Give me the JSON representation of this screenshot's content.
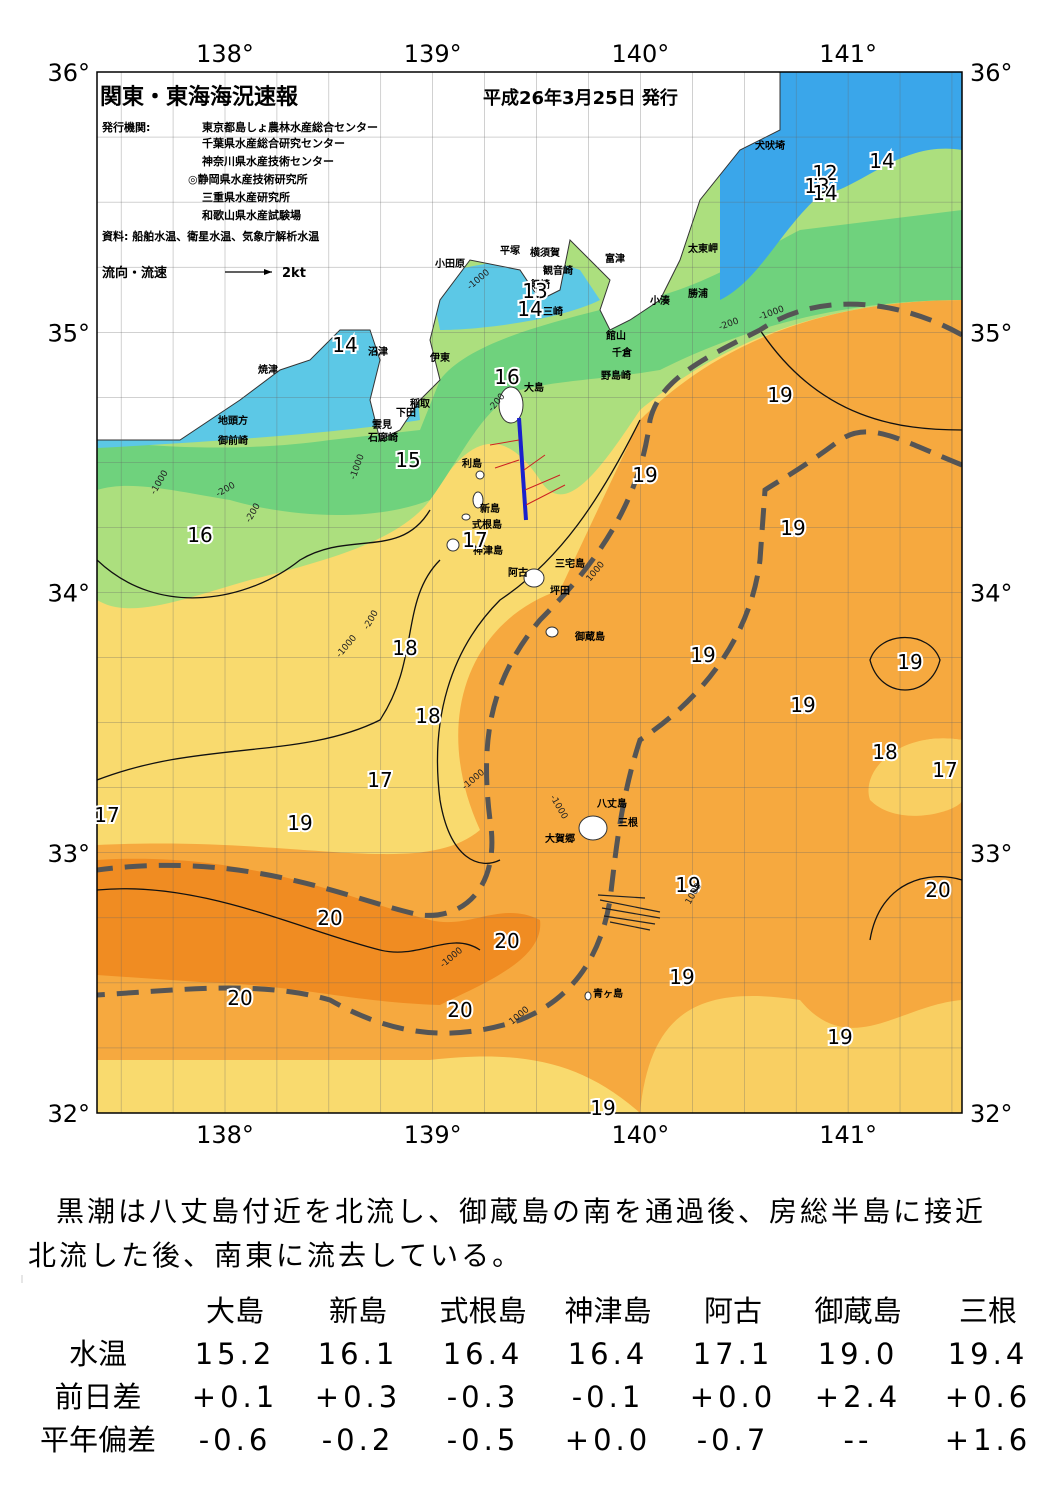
{
  "header": {
    "title": "関東・東海海況速報",
    "date": "平成26年3月25日 発行",
    "issuers_label": "発行機関:",
    "issuers": [
      "東京都島しょ農林水産総合センター",
      "千葉県水産総合研究センター",
      "神奈川県水産技術センター",
      "◎静岡県水産技術研究所",
      "三重県水産研究所",
      "和歌山県水産試験場"
    ],
    "source": "資料: 船舶水温、衛星水温、気象庁解析水温",
    "legend_label": "流向・流速",
    "legend_speed": "2kt"
  },
  "map": {
    "lon_labels": [
      "138°",
      "139°",
      "140°",
      "141°"
    ],
    "lat_labels": [
      "36°",
      "35°",
      "34°",
      "33°",
      "32°"
    ],
    "places": [
      "犬吠埼",
      "太東岬",
      "富津",
      "勝浦",
      "小湊",
      "館山",
      "千倉",
      "野島崎",
      "平塚",
      "横須賀",
      "観音崎",
      "剱崎",
      "三崎",
      "小田原",
      "沼津",
      "伊東",
      "焼津",
      "大島",
      "稲取",
      "下田",
      "雲見",
      "石廊崎",
      "地頭方",
      "御前崎",
      "利島",
      "新島",
      "式根島",
      "神津島",
      "阿古",
      "三宅島",
      "坪田",
      "御蔵島",
      "八丈島",
      "三根",
      "大賀郷",
      "青ヶ島"
    ],
    "temperature_labels": [
      "14",
      "12",
      "13",
      "14",
      "16",
      "13",
      "14",
      "14",
      "15",
      "16",
      "17",
      "18",
      "18",
      "17",
      "19",
      "17",
      "19",
      "19",
      "19",
      "19",
      "19",
      "19",
      "18",
      "17",
      "19",
      "20",
      "20",
      "20",
      "19",
      "20",
      "20",
      "19",
      "19"
    ],
    "depth_labels": [
      "-1000",
      "-200",
      "-1000",
      "-1000",
      "-200",
      "-1000",
      "-200",
      "-1000",
      "-1000",
      "-200",
      "-1000",
      "1000",
      "-200",
      "1000",
      "-1000",
      "1000"
    ]
  },
  "summary": "黒潮は八丈島付近を北流し、御蔵島の南を通過後、房総半島に接近北流した後、南東に流去している。",
  "table": {
    "columns": [
      "大島",
      "新島",
      "式根島",
      "神津島",
      "阿古",
      "御蔵島",
      "三根"
    ],
    "rows": [
      {
        "label": "水温",
        "values": [
          "15.2",
          "16.1",
          "16.4",
          "16.4",
          "17.1",
          "19.0",
          "19.4"
        ]
      },
      {
        "label": "前日差",
        "values": [
          "+0.1",
          "+0.3",
          "-0.3",
          "-0.1",
          "+0.0",
          "+2.4",
          "+0.6"
        ]
      },
      {
        "label": "平年偏差",
        "values": [
          "-0.6",
          "-0.2",
          "-0.5",
          "+0.0",
          "-0.7",
          "--",
          "+1.6"
        ]
      }
    ]
  }
}
